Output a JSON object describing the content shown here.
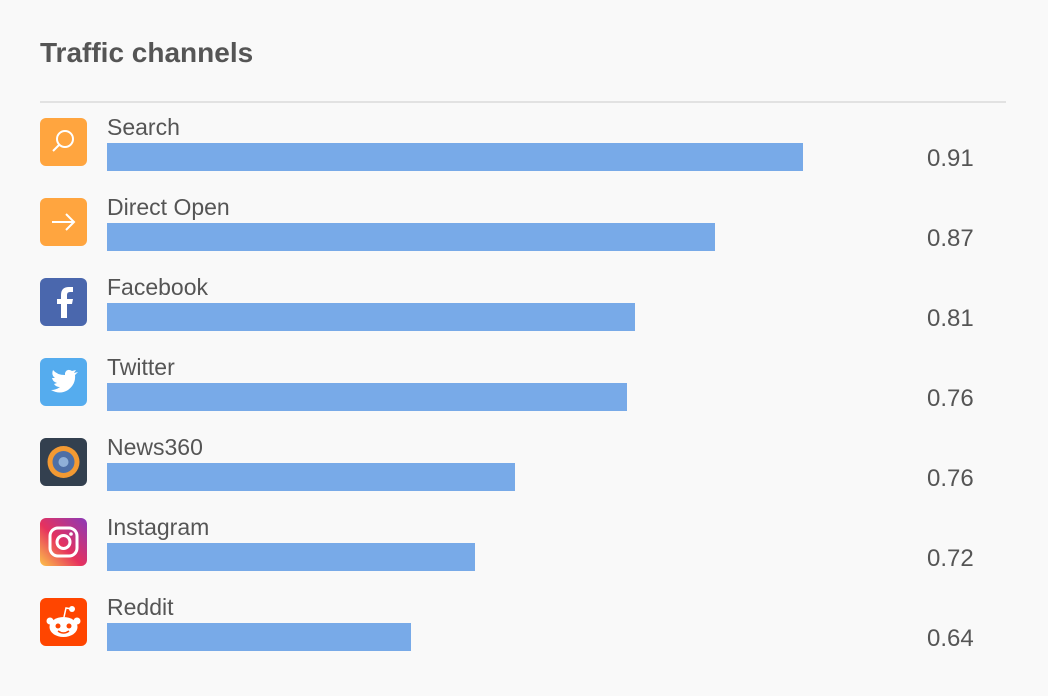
{
  "chart_data": {
    "type": "bar",
    "orientation": "horizontal",
    "title": "Traffic channels",
    "categories": [
      "Search",
      "Direct Open",
      "Facebook",
      "Twitter",
      "News360",
      "Instagram",
      "Reddit"
    ],
    "values": [
      87,
      76,
      66,
      65,
      51,
      46,
      38
    ],
    "scores": [
      0.91,
      0.87,
      0.81,
      0.76,
      0.76,
      0.72,
      0.64
    ],
    "xlim": [
      0,
      100
    ],
    "color": "#78aae8"
  }
}
